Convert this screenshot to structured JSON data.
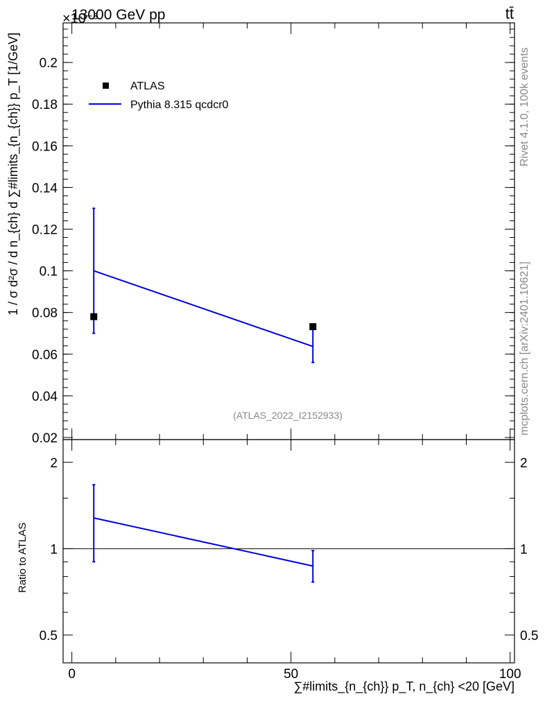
{
  "header": {
    "left": "13000 GeV pp",
    "right": "tt̄",
    "exponent": "×10⁻³"
  },
  "side_text": {
    "rivet": "Rivet 4.1.0,  100k events",
    "mcplots": "mcplots.cern.ch [arXiv:2401.10621]"
  },
  "chart_data": [
    {
      "type": "line",
      "panel": "main",
      "ylabel": "1 / σ d²σ / d n_{ch} d ∑#limits_{n_{ch}} p_T [1/GeV]",
      "xlim": [
        -2,
        101
      ],
      "ylim": [
        0.019,
        0.219
      ],
      "y_scale_factor": "×10⁻³",
      "yticks": [
        "0.02",
        "0.04",
        "0.06",
        "0.08",
        "0.1",
        "0.12",
        "0.14",
        "0.16",
        "0.18",
        "0.2"
      ],
      "watermark": "(ATLAS_2022_I2152933)",
      "legend_position": "top-left",
      "series": [
        {
          "name": "ATLAS",
          "style": "markers",
          "color": "#000000",
          "x": [
            5,
            55
          ],
          "y": [
            0.078,
            0.0732
          ]
        },
        {
          "name": "Pythia 8.315 qcdcr0",
          "style": "line",
          "color": "#0000dd",
          "x": [
            5,
            55
          ],
          "y": [
            0.1,
            0.0637
          ],
          "err_low": [
            0.07,
            0.056
          ],
          "err_high": [
            0.13,
            0.072
          ]
        }
      ]
    },
    {
      "type": "line",
      "panel": "ratio",
      "ylabel": "Ratio to ATLAS",
      "xlabel": "∑#limits_{n_{ch}} p_T, n_{ch} <20 [GeV]",
      "xlim": [
        -2,
        101
      ],
      "y_scale": "log",
      "ylim": [
        0.4,
        2.4
      ],
      "yticks": [
        "0.5",
        "1",
        "2"
      ],
      "xticks": [
        "0",
        "50",
        "100"
      ],
      "reference_line": 1,
      "series": [
        {
          "name": "Pythia 8.315 qcdcr0",
          "color": "#0000dd",
          "x": [
            5,
            55
          ],
          "y": [
            1.28,
            0.87
          ],
          "err_low": [
            0.9,
            0.765
          ],
          "err_high": [
            1.67,
            0.985
          ]
        }
      ]
    }
  ]
}
